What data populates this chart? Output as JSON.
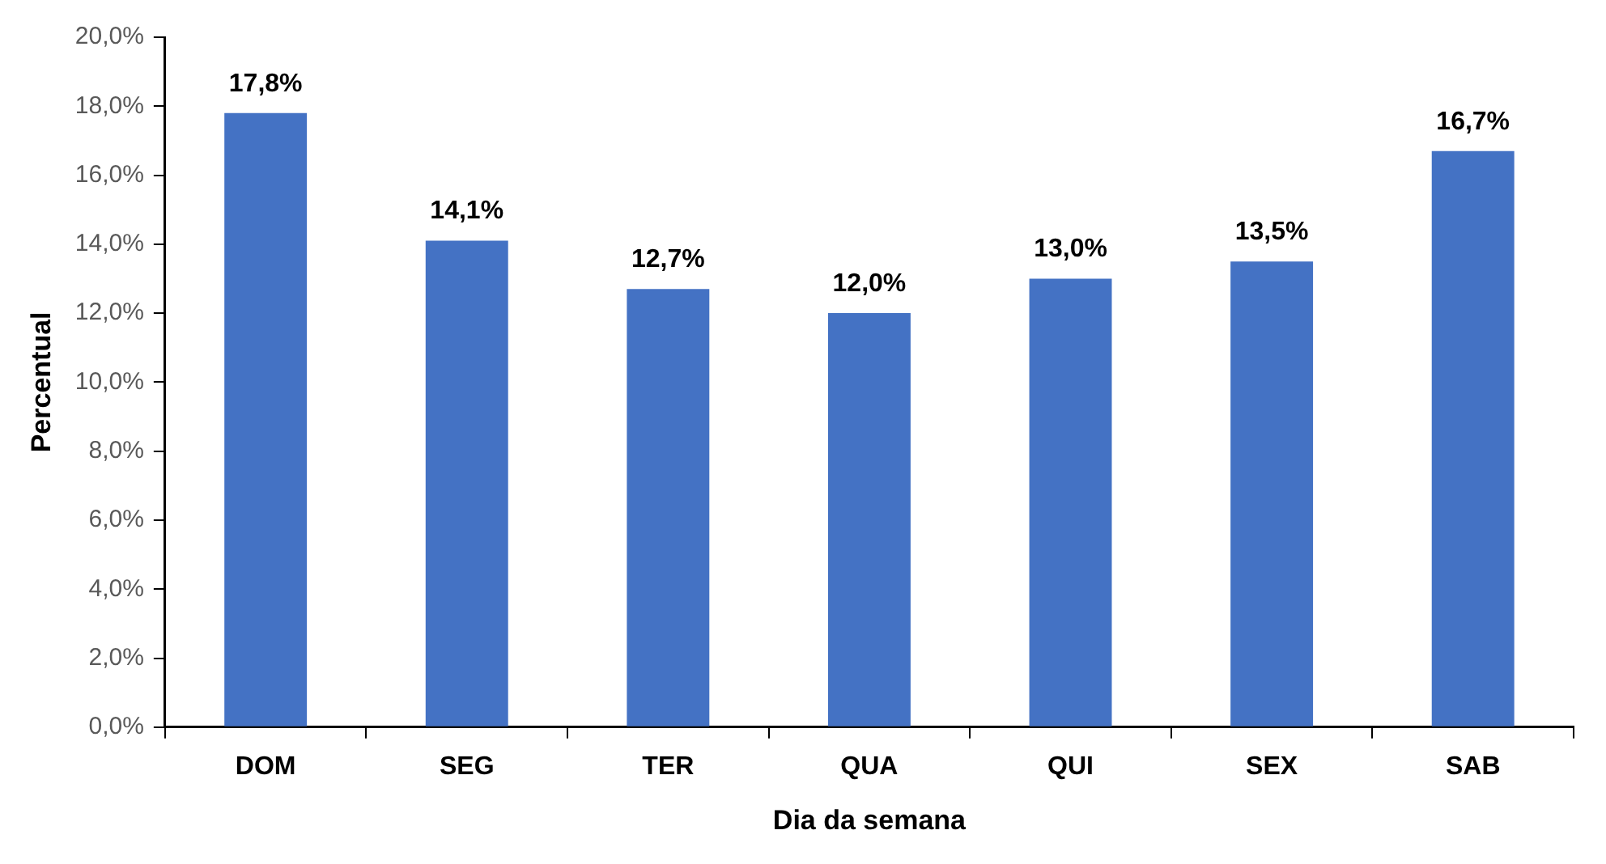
{
  "chart_data": {
    "type": "bar",
    "xlabel": "Dia da semana",
    "ylabel": "Percentual",
    "categories": [
      "DOM",
      "SEG",
      "TER",
      "QUA",
      "QUI",
      "SEX",
      "SAB"
    ],
    "values": [
      17.8,
      14.1,
      12.7,
      12.0,
      13.0,
      13.5,
      16.7
    ],
    "value_labels": [
      "17,8%",
      "14,1%",
      "12,7%",
      "12,0%",
      "13,0%",
      "13,5%",
      "16,7%"
    ],
    "color": "#4472c4",
    "ylim": [
      0,
      20
    ],
    "yticks": [
      {
        "value": 0,
        "label": "0,0%"
      },
      {
        "value": 2,
        "label": "2,0%"
      },
      {
        "value": 4,
        "label": "4,0%"
      },
      {
        "value": 6,
        "label": "6,0%"
      },
      {
        "value": 8,
        "label": "8,0%"
      },
      {
        "value": 10,
        "label": "10,0%"
      },
      {
        "value": 12,
        "label": "12,0%"
      },
      {
        "value": 14,
        "label": "14,0%"
      },
      {
        "value": 16,
        "label": "16,0%"
      },
      {
        "value": 18,
        "label": "18,0%"
      },
      {
        "value": 20,
        "label": "20,0%"
      }
    ],
    "grid": false,
    "legend": false
  }
}
